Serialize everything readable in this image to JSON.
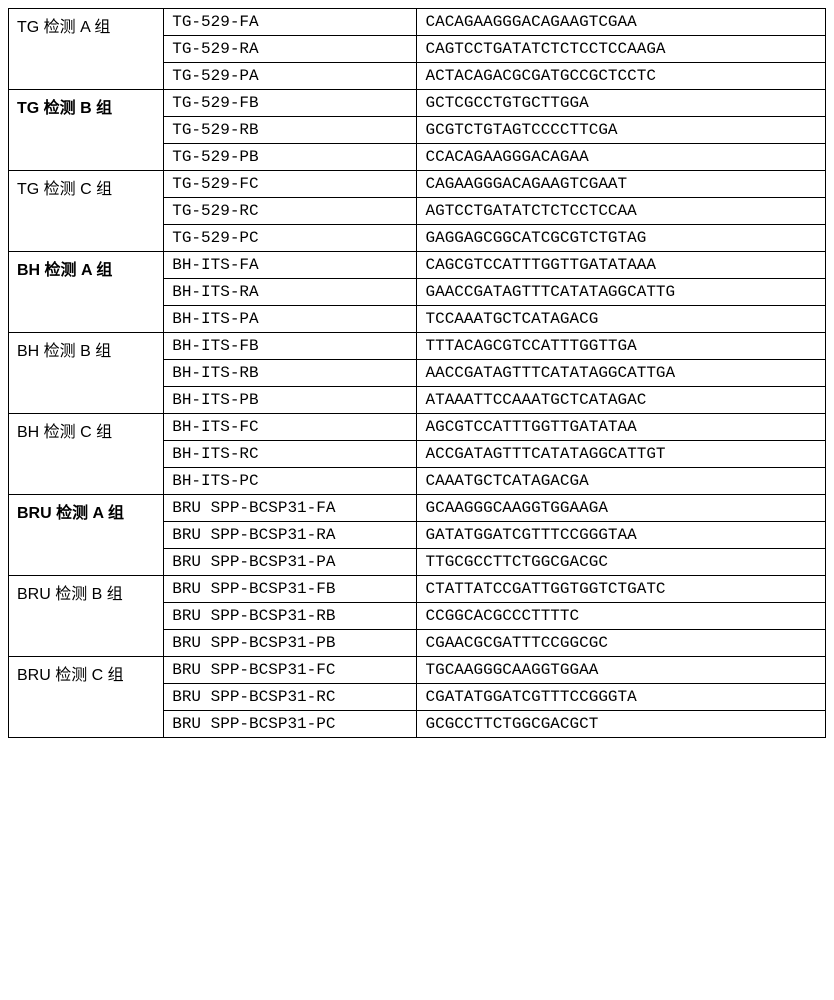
{
  "groups": [
    {
      "label": "TG 检测 A 组",
      "bold": false,
      "rows": [
        {
          "name": "TG-529-FA",
          "seq": "CACAGAAGGGACAGAAGTCGAA"
        },
        {
          "name": "TG-529-RA",
          "seq": "CAGTCCTGATATCTCTCCTCCAAGA"
        },
        {
          "name": "TG-529-PA",
          "seq": "ACTACAGACGCGATGCCGCTCCTC"
        }
      ]
    },
    {
      "label": "TG 检测 B 组",
      "bold": true,
      "rows": [
        {
          "name": "TG-529-FB",
          "seq": "GCTCGCCTGTGCTTGGA"
        },
        {
          "name": "TG-529-RB",
          "seq": "GCGTCTGTAGTCCCCTTCGA"
        },
        {
          "name": "TG-529-PB",
          "seq": "CCACAGAAGGGACAGAA"
        }
      ]
    },
    {
      "label": "TG 检测 C 组",
      "bold": false,
      "rows": [
        {
          "name": "TG-529-FC",
          "seq": "CAGAAGGGACAGAAGTCGAAT"
        },
        {
          "name": "TG-529-RC",
          "seq": "AGTCCTGATATCTCTCCTCCAA"
        },
        {
          "name": "TG-529-PC",
          "seq": "GAGGAGCGGCATCGCGTCTGTAG"
        }
      ]
    },
    {
      "label": "BH 检测 A 组",
      "bold": true,
      "rows": [
        {
          "name": "BH-ITS-FA",
          "seq": "CAGCGTCCATTTGGTTGATATAAA"
        },
        {
          "name": "BH-ITS-RA",
          "seq": "GAACCGATAGTTTCATATAGGCATTG"
        },
        {
          "name": "BH-ITS-PA",
          "seq": "TCCAAATGCTCATAGACG"
        }
      ]
    },
    {
      "label": "BH 检测 B 组",
      "bold": false,
      "rows": [
        {
          "name": "BH-ITS-FB",
          "seq": "TTTACAGCGTCCATTTGGTTGA"
        },
        {
          "name": "BH-ITS-RB",
          "seq": "AACCGATAGTTTCATATAGGCATTGA"
        },
        {
          "name": "BH-ITS-PB",
          "seq": "ATAAATTCCAAATGCTCATAGAC"
        }
      ]
    },
    {
      "label": "BH 检测 C 组",
      "bold": false,
      "rows": [
        {
          "name": "BH-ITS-FC",
          "seq": "AGCGTCCATTTGGTTGATATAA"
        },
        {
          "name": "BH-ITS-RC",
          "seq": "ACCGATAGTTTCATATAGGCATTGT"
        },
        {
          "name": "BH-ITS-PC",
          "seq": "CAAATGCTCATAGACGA"
        }
      ]
    },
    {
      "label": "BRU 检测 A 组",
      "bold": true,
      "rows": [
        {
          "name": "BRU SPP-BCSP31-FA",
          "seq": "GCAAGGGCAAGGTGGAAGA"
        },
        {
          "name": "BRU SPP-BCSP31-RA",
          "seq": "GATATGGATCGTTTCCGGGTAA"
        },
        {
          "name": "BRU SPP-BCSP31-PA",
          "seq": "TTGCGCCTTCTGGCGACGC"
        }
      ]
    },
    {
      "label": "BRU 检测 B 组",
      "bold": false,
      "rows": [
        {
          "name": "BRU SPP-BCSP31-FB",
          "seq": "CTATTATCCGATTGGTGGTCTGATC"
        },
        {
          "name": "BRU SPP-BCSP31-RB",
          "seq": "CCGGCACGCCCTTTTC"
        },
        {
          "name": "BRU SPP-BCSP31-PB",
          "seq": "CGAACGCGATTTCCGGCGC"
        }
      ]
    },
    {
      "label": "BRU 检测 C 组",
      "bold": false,
      "rows": [
        {
          "name": "BRU SPP-BCSP31-FC",
          "seq": "TGCAAGGGCAAGGTGGAA"
        },
        {
          "name": "BRU SPP-BCSP31-RC",
          "seq": "CGATATGGATCGTTTCCGGGTA"
        },
        {
          "name": "BRU SPP-BCSP31-PC",
          "seq": "GCGCCTTCTGGCGACGCT"
        }
      ]
    }
  ],
  "styling": {
    "border_color": "#000000",
    "background_color": "#ffffff",
    "font_size": 16,
    "col_widths_pct": [
      19,
      31,
      50
    ],
    "mono_font": "Courier New",
    "cjk_font": "SimSun"
  }
}
